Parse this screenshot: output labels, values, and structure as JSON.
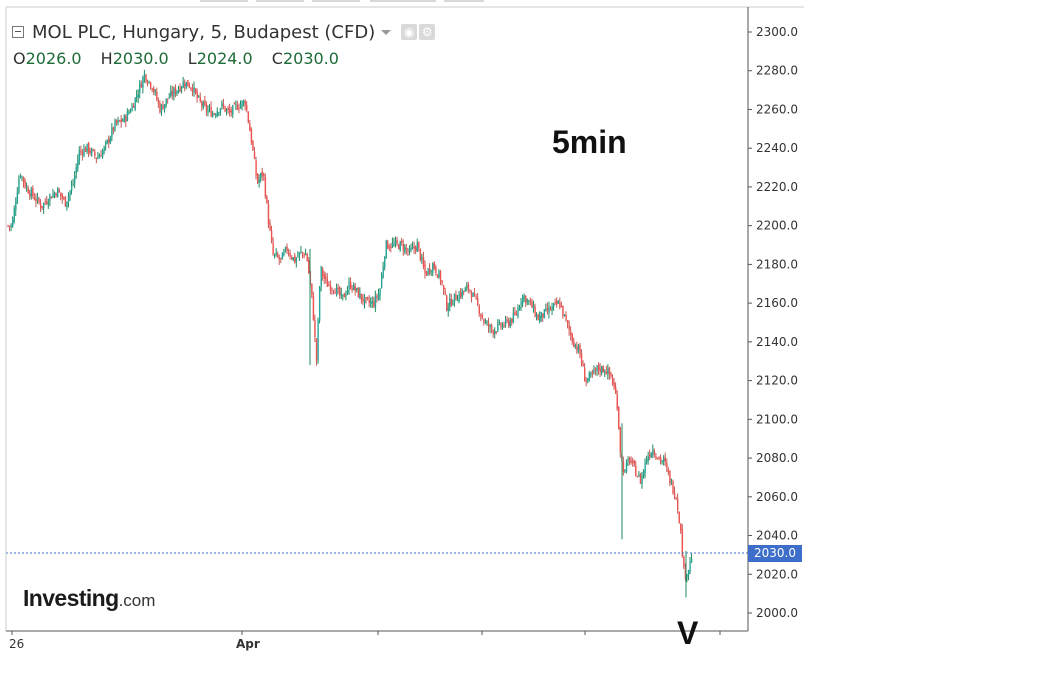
{
  "legend": {
    "title": "MOL PLC, Hungary, 5, Budapest (CFD)",
    "ohlc": {
      "o_label": "O",
      "o_value": "2026.0",
      "h_label": "H",
      "h_value": "2030.0",
      "l_label": "L",
      "l_value": "2024.0",
      "c_label": "C",
      "c_value": "2030.0"
    }
  },
  "annotations": {
    "timeframe": "5min",
    "marker": "V"
  },
  "brand": {
    "name": "Investing",
    "suffix": ".com"
  },
  "current_price_label": "2030.0",
  "colors": {
    "up": "#26a69a",
    "down": "#ef5350",
    "up_dark": "#1f8a5e",
    "down_dark": "#c75a5a",
    "price_line": "#3d6ec9",
    "axis": "#555555",
    "text": "#333333"
  },
  "icons": [
    "collapse-icon",
    "caret-down-icon",
    "eye-icon",
    "gear-icon"
  ],
  "chart_data": {
    "type": "candlestick",
    "title": "MOL PLC, Hungary, 5, Budapest (CFD)",
    "xlabel": "",
    "ylabel": "",
    "ylim": [
      1992,
      2310
    ],
    "y_ticks": [
      "2300.0",
      "2280.0",
      "2260.0",
      "2240.0",
      "2220.0",
      "2200.0",
      "2180.0",
      "2160.0",
      "2140.0",
      "2120.0",
      "2100.0",
      "2080.0",
      "2060.0",
      "2040.0",
      "2020.0",
      "2000.0"
    ],
    "x_tick_labels": [
      "26",
      "Apr"
    ],
    "last_price": 2030.0,
    "grid": false,
    "close_path": [
      [
        0,
        2200
      ],
      [
        4,
        2200
      ],
      [
        12,
        2228
      ],
      [
        18,
        2220
      ],
      [
        26,
        2215
      ],
      [
        34,
        2210
      ],
      [
        42,
        2215
      ],
      [
        50,
        2218
      ],
      [
        58,
        2212
      ],
      [
        66,
        2222
      ],
      [
        72,
        2238
      ],
      [
        80,
        2240
      ],
      [
        90,
        2235
      ],
      [
        98,
        2240
      ],
      [
        108,
        2252
      ],
      [
        118,
        2255
      ],
      [
        126,
        2262
      ],
      [
        132,
        2270
      ],
      [
        138,
        2278
      ],
      [
        146,
        2272
      ],
      [
        154,
        2260
      ],
      [
        162,
        2266
      ],
      [
        170,
        2270
      ],
      [
        178,
        2274
      ],
      [
        186,
        2272
      ],
      [
        192,
        2265
      ],
      [
        200,
        2260
      ],
      [
        208,
        2258
      ],
      [
        216,
        2262
      ],
      [
        224,
        2258
      ],
      [
        232,
        2262
      ],
      [
        240,
        2264
      ],
      [
        246,
        2245
      ],
      [
        252,
        2222
      ],
      [
        258,
        2228
      ],
      [
        264,
        2200
      ],
      [
        268,
        2185
      ],
      [
        276,
        2182
      ],
      [
        282,
        2188
      ],
      [
        290,
        2182
      ],
      [
        296,
        2186
      ],
      [
        302,
        2185
      ],
      [
        308,
        2160
      ],
      [
        312,
        2130
      ],
      [
        316,
        2178
      ],
      [
        322,
        2170
      ],
      [
        330,
        2168
      ],
      [
        338,
        2162
      ],
      [
        346,
        2170
      ],
      [
        354,
        2165
      ],
      [
        362,
        2160
      ],
      [
        370,
        2160
      ],
      [
        376,
        2166
      ],
      [
        382,
        2190
      ],
      [
        390,
        2190
      ],
      [
        398,
        2190
      ],
      [
        406,
        2186
      ],
      [
        414,
        2190
      ],
      [
        422,
        2175
      ],
      [
        430,
        2180
      ],
      [
        438,
        2172
      ],
      [
        444,
        2158
      ],
      [
        450,
        2162
      ],
      [
        458,
        2165
      ],
      [
        466,
        2168
      ],
      [
        474,
        2160
      ],
      [
        482,
        2150
      ],
      [
        490,
        2146
      ],
      [
        498,
        2148
      ],
      [
        506,
        2150
      ],
      [
        514,
        2154
      ],
      [
        520,
        2164
      ],
      [
        528,
        2160
      ],
      [
        536,
        2152
      ],
      [
        544,
        2155
      ],
      [
        552,
        2158
      ],
      [
        558,
        2160
      ],
      [
        566,
        2148
      ],
      [
        572,
        2140
      ],
      [
        578,
        2135
      ],
      [
        584,
        2120
      ],
      [
        590,
        2122
      ],
      [
        596,
        2126
      ],
      [
        604,
        2126
      ],
      [
        610,
        2122
      ],
      [
        616,
        2110
      ],
      [
        620,
        2080
      ],
      [
        624,
        2072
      ],
      [
        628,
        2080
      ],
      [
        634,
        2074
      ],
      [
        640,
        2068
      ],
      [
        646,
        2080
      ],
      [
        652,
        2085
      ],
      [
        658,
        2080
      ],
      [
        664,
        2078
      ],
      [
        670,
        2068
      ],
      [
        676,
        2060
      ],
      [
        680,
        2045
      ],
      [
        684,
        2020
      ],
      [
        688,
        2022
      ],
      [
        692,
        2030
      ]
    ]
  }
}
